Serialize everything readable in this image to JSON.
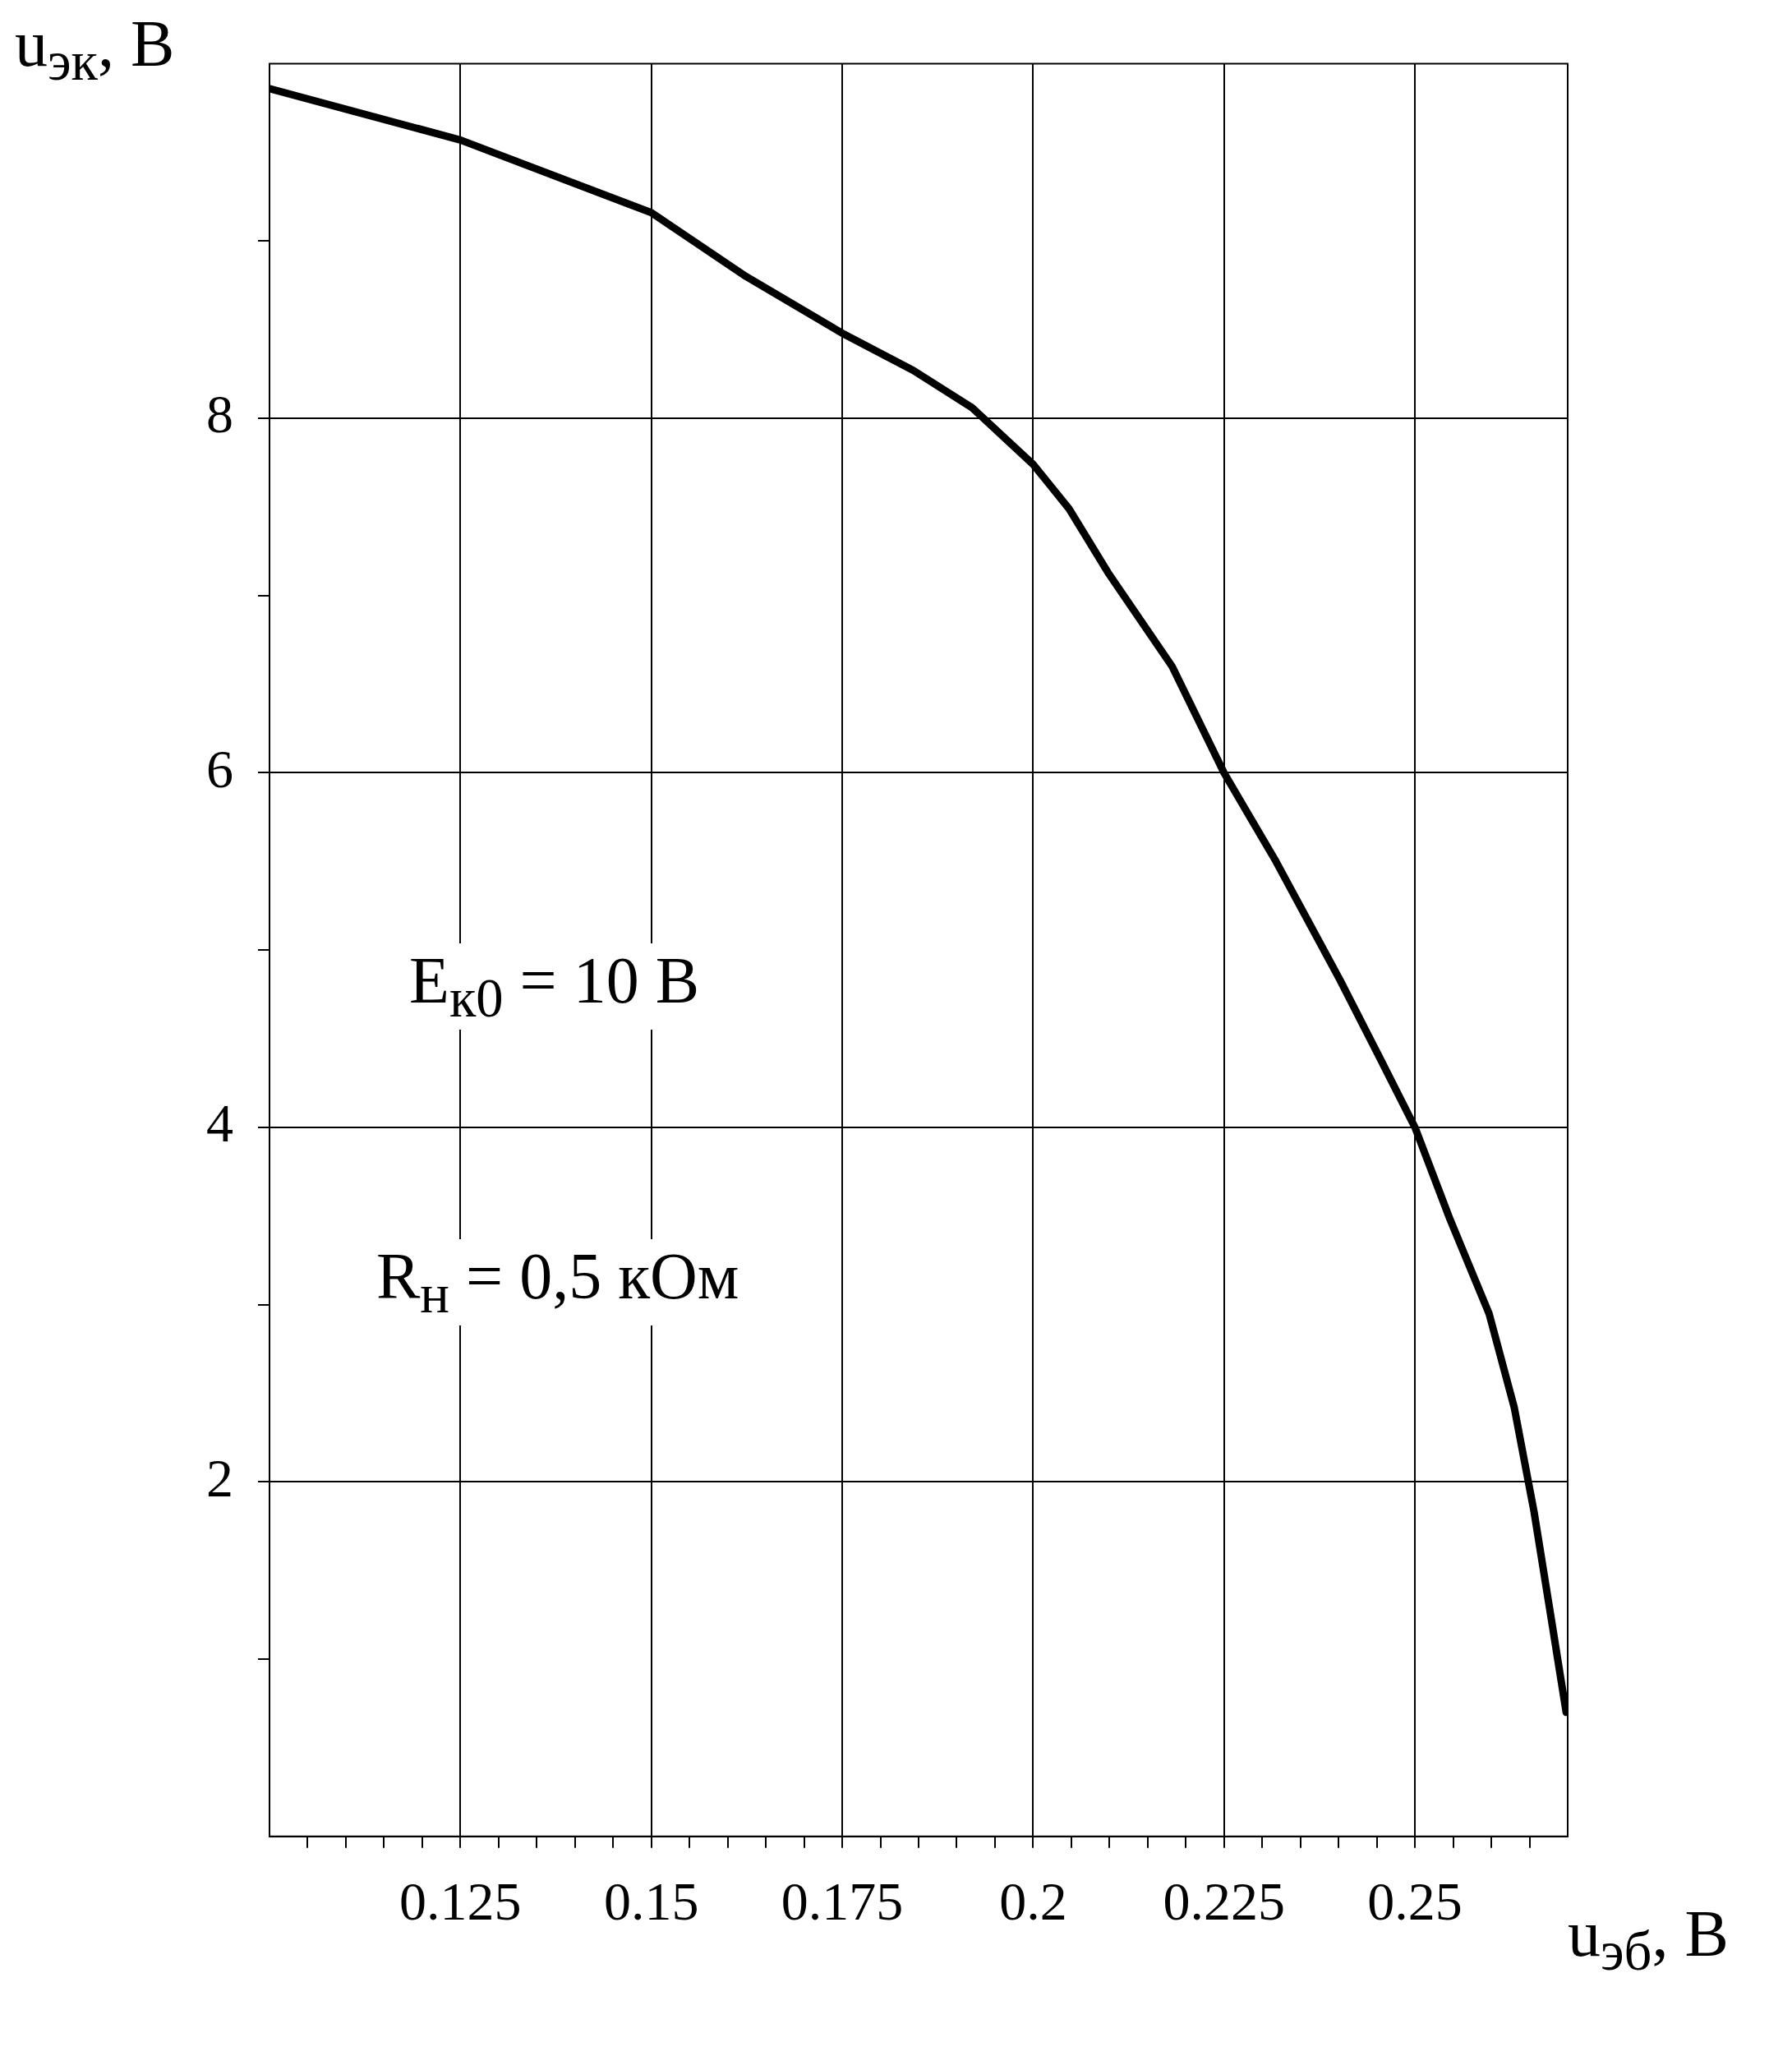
{
  "chart_data": {
    "type": "line",
    "xlabel": "u$_{эб}$, В",
    "ylabel": "u$_{эк}$, В",
    "annotations": [
      "E$_{к0}$ = 10 В",
      "R$_{н}$ = 0,5 кОм"
    ],
    "x": [
      0.1,
      0.125,
      0.15,
      0.1624,
      0.175,
      0.1843,
      0.192,
      0.2,
      0.2047,
      0.2098,
      0.2182,
      0.225,
      0.2318,
      0.2402,
      0.2453,
      0.25,
      0.2546,
      0.2597,
      0.263,
      0.2656,
      0.2681,
      0.2698
    ],
    "series": [
      {
        "color": "#000000",
        "values": [
          9.86,
          9.57,
          9.16,
          8.8,
          8.48,
          8.27,
          8.06,
          7.74,
          7.49,
          7.13,
          6.6,
          6.0,
          5.5,
          4.83,
          4.4,
          4.0,
          3.48,
          2.95,
          2.42,
          1.83,
          1.16,
          0.7
        ]
      }
    ],
    "xlim": [
      0.1,
      0.27
    ],
    "ylim": [
      0,
      10
    ],
    "xticks": [
      {
        "value": 0.105,
        "label": null
      },
      {
        "value": 0.11,
        "label": null
      },
      {
        "value": 0.115,
        "label": null
      },
      {
        "value": 0.12,
        "label": null
      },
      {
        "value": 0.125,
        "label": "0.125"
      },
      {
        "value": 0.13,
        "label": null
      },
      {
        "value": 0.135,
        "label": null
      },
      {
        "value": 0.14,
        "label": null
      },
      {
        "value": 0.145,
        "label": null
      },
      {
        "value": 0.15,
        "label": "0.15"
      },
      {
        "value": 0.155,
        "label": null
      },
      {
        "value": 0.16,
        "label": null
      },
      {
        "value": 0.165,
        "label": null
      },
      {
        "value": 0.17,
        "label": null
      },
      {
        "value": 0.175,
        "label": "0.175"
      },
      {
        "value": 0.18,
        "label": null
      },
      {
        "value": 0.185,
        "label": null
      },
      {
        "value": 0.19,
        "label": null
      },
      {
        "value": 0.195,
        "label": null
      },
      {
        "value": 0.2,
        "label": "0.2"
      },
      {
        "value": 0.205,
        "label": null
      },
      {
        "value": 0.21,
        "label": null
      },
      {
        "value": 0.215,
        "label": null
      },
      {
        "value": 0.22,
        "label": null
      },
      {
        "value": 0.225,
        "label": "0.225"
      },
      {
        "value": 0.23,
        "label": null
      },
      {
        "value": 0.235,
        "label": null
      },
      {
        "value": 0.24,
        "label": null
      },
      {
        "value": 0.245,
        "label": null
      },
      {
        "value": 0.25,
        "label": "0.25"
      },
      {
        "value": 0.255,
        "label": null
      },
      {
        "value": 0.26,
        "label": null
      },
      {
        "value": 0.265,
        "label": null
      }
    ],
    "yticks": [
      {
        "value": 1,
        "label": null
      },
      2,
      {
        "value": 3,
        "label": null
      },
      4,
      {
        "value": 5,
        "label": null
      },
      6,
      {
        "value": 7,
        "label": null
      },
      8,
      {
        "value": 9,
        "label": null
      }
    ],
    "grid": true,
    "marker": "none",
    "line_style": "solid",
    "legend": false
  }
}
